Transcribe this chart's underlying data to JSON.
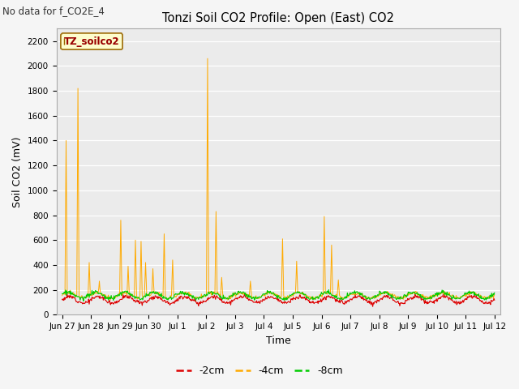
{
  "title": "Tonzi Soil CO2 Profile: Open (East) CO2",
  "no_data_text": "No data for f_CO2E_4",
  "legend_box_text": "TZ_soilco2",
  "xlabel": "Time",
  "ylabel": "Soil CO2 (mV)",
  "ylim": [
    0,
    2300
  ],
  "yticks": [
    0,
    200,
    400,
    600,
    800,
    1000,
    1200,
    1400,
    1600,
    1800,
    2000,
    2200
  ],
  "bg_color": "#ebebeb",
  "fig_color": "#f5f5f5",
  "line_colors": {
    "m2cm": "#dd0000",
    "m4cm": "#ffaa00",
    "m8cm": "#00cc00"
  },
  "legend_labels": [
    "-2cm",
    "-4cm",
    "-8cm"
  ],
  "num_points": 768,
  "x_tick_labels": [
    "Jun 27",
    "Jun 28",
    "Jun 29",
    "Jun 30",
    "Jul 1",
    "Jul 2",
    "Jul 3",
    "Jul 4",
    "Jul 5",
    "Jul 6",
    "Jul 7",
    "Jul 8",
    "Jul 9",
    "Jul 10",
    "Jul 11",
    "Jul 12"
  ],
  "x_tick_positions": [
    0,
    1,
    2,
    3,
    4,
    5,
    6,
    7,
    8,
    9,
    10,
    11,
    12,
    13,
    14,
    15
  ],
  "spike_positions": [
    [
      0.15,
      1400
    ],
    [
      0.55,
      1820
    ],
    [
      0.95,
      420
    ],
    [
      1.3,
      270
    ],
    [
      2.05,
      760
    ],
    [
      2.3,
      390
    ],
    [
      2.55,
      600
    ],
    [
      2.75,
      590
    ],
    [
      2.9,
      420
    ],
    [
      3.15,
      370
    ],
    [
      3.55,
      650
    ],
    [
      3.85,
      440
    ],
    [
      5.05,
      2060
    ],
    [
      5.35,
      830
    ],
    [
      5.55,
      300
    ],
    [
      6.55,
      270
    ],
    [
      7.65,
      610
    ],
    [
      8.15,
      430
    ],
    [
      9.1,
      790
    ],
    [
      9.35,
      560
    ],
    [
      9.6,
      280
    ]
  ]
}
